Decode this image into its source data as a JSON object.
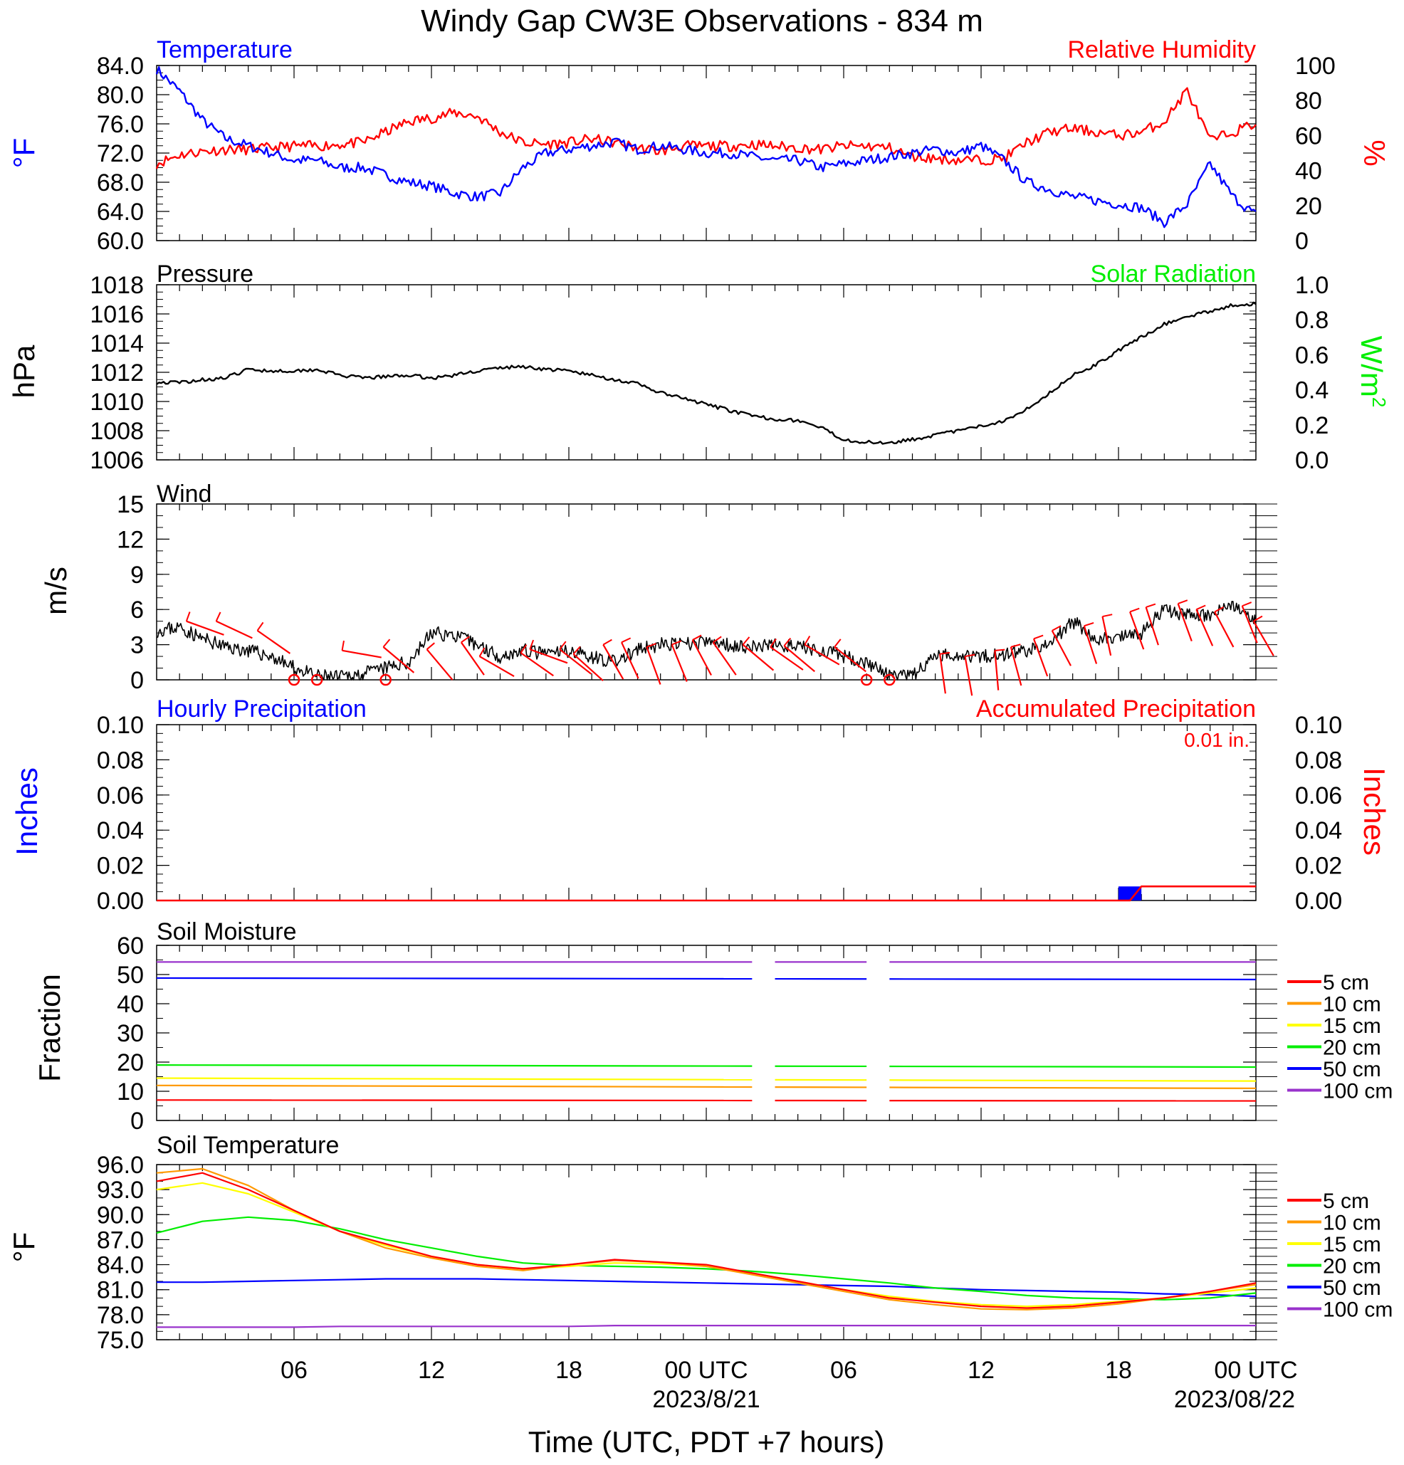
{
  "title": "Windy Gap CW3E Observations - 834 m",
  "xlabel": "Time (UTC, PDT +7 hours)",
  "x_ticks": [
    "06",
    "12",
    "18",
    "00 UTC",
    "06",
    "12",
    "18",
    "00 UTC"
  ],
  "x_dates": [
    "2023/8/21",
    "2023/08/22"
  ],
  "colors": {
    "blue": "#0000ff",
    "red": "#ff0000",
    "green": "#00ee00",
    "black": "#000000"
  },
  "legend_labels": [
    "5 cm",
    "10 cm",
    "15 cm",
    "20 cm",
    "50 cm",
    "100 cm"
  ],
  "legend_colors": [
    "#ff0000",
    "#ff9900",
    "#ffff00",
    "#00ee00",
    "#0000ff",
    "#9933cc"
  ],
  "chart_data": [
    {
      "type": "line",
      "left_title": "Temperature",
      "right_title": "Relative Humidity",
      "left_ylabel": "°F",
      "right_ylabel": "%",
      "ylim_left": [
        60,
        84
      ],
      "ylim_right": [
        0,
        100
      ],
      "left_ticks": [
        "84.0",
        "80.0",
        "76.0",
        "72.0",
        "68.0",
        "64.0",
        "60.0"
      ],
      "right_ticks": [
        "100",
        "80",
        "60",
        "40",
        "20",
        "0"
      ],
      "x_hours": [
        0,
        1,
        2,
        3,
        4,
        5,
        6,
        7,
        8,
        9,
        10,
        11,
        12,
        13,
        14,
        15,
        16,
        17,
        18,
        19,
        20,
        21,
        22,
        23,
        24,
        25,
        26,
        27,
        28,
        29,
        30,
        31,
        32,
        33,
        34,
        35,
        36,
        37,
        38,
        39,
        40,
        41,
        42,
        43,
        44,
        45,
        46,
        47,
        48
      ],
      "series": [
        {
          "name": "Temperature",
          "axis": "left",
          "color": "#0000ff",
          "values": [
            83.5,
            80.5,
            76.5,
            74.0,
            73.0,
            72.0,
            71.0,
            71.0,
            70.0,
            70.0,
            69.0,
            68.0,
            67.5,
            66.5,
            66.0,
            66.5,
            70.0,
            72.0,
            72.5,
            73.0,
            73.5,
            72.5,
            73.0,
            72.5,
            72.0,
            72.0,
            71.5,
            71.0,
            71.0,
            70.0,
            70.5,
            71.0,
            71.5,
            72.0,
            72.5,
            72.0,
            73.0,
            71.0,
            68.0,
            67.0,
            66.0,
            65.5,
            65.0,
            64.5,
            62.5,
            65.0,
            70.5,
            66.0,
            63.5
          ]
        },
        {
          "name": "Relative Humidity",
          "axis": "right",
          "color": "#ff0000",
          "values": [
            44,
            49,
            51,
            52,
            52,
            53,
            54,
            54,
            55,
            56,
            62,
            68,
            70,
            73,
            71,
            62,
            56,
            55,
            56,
            58,
            56,
            53,
            51,
            54,
            54,
            54,
            55,
            54,
            53,
            52,
            54,
            54,
            53,
            48,
            47,
            46,
            46,
            47,
            56,
            62,
            64,
            62,
            60,
            62,
            68,
            86,
            57,
            62,
            67
          ]
        }
      ]
    },
    {
      "type": "line",
      "left_title": "Pressure",
      "right_title": "Solar Radiation",
      "left_ylabel": "hPa",
      "right_ylabel": "W/m",
      "right_ylabel_sup": "2",
      "ylim_left": [
        1006,
        1018
      ],
      "ylim_right": [
        0,
        1.0
      ],
      "left_ticks": [
        "1018",
        "1016",
        "1014",
        "1012",
        "1010",
        "1008",
        "1006"
      ],
      "right_ticks": [
        "1.0",
        "0.8",
        "0.6",
        "0.4",
        "0.2",
        "0.0"
      ],
      "x_hours": [
        0,
        1,
        2,
        3,
        4,
        5,
        6,
        7,
        8,
        9,
        10,
        11,
        12,
        13,
        14,
        15,
        16,
        17,
        18,
        19,
        20,
        21,
        22,
        23,
        24,
        25,
        26,
        27,
        28,
        29,
        30,
        31,
        32,
        33,
        34,
        35,
        36,
        37,
        38,
        39,
        40,
        41,
        42,
        43,
        44,
        45,
        46,
        47,
        48
      ],
      "series": [
        {
          "name": "Pressure",
          "axis": "left",
          "color": "#000000",
          "values": [
            1011.3,
            1011.3,
            1011.5,
            1011.6,
            1012.2,
            1012.1,
            1012.1,
            1012.2,
            1011.8,
            1011.6,
            1011.7,
            1011.8,
            1011.6,
            1011.8,
            1012.1,
            1012.3,
            1012.4,
            1012.2,
            1012.1,
            1011.8,
            1011.5,
            1011.2,
            1010.6,
            1010.2,
            1009.8,
            1009.4,
            1009.0,
            1008.8,
            1008.7,
            1008.2,
            1007.4,
            1007.2,
            1007.2,
            1007.4,
            1007.7,
            1008.0,
            1008.3,
            1008.7,
            1009.5,
            1010.6,
            1011.8,
            1012.5,
            1013.5,
            1014.4,
            1015.3,
            1015.8,
            1016.2,
            1016.6,
            1016.7
          ]
        }
      ]
    },
    {
      "type": "line",
      "left_title": "Wind",
      "left_ylabel": "m/s",
      "ylim_left": [
        0,
        15
      ],
      "left_ticks": [
        "15",
        "12",
        "9",
        "6",
        "3",
        "0"
      ],
      "x_hours": [
        0,
        1,
        2,
        3,
        4,
        5,
        6,
        7,
        8,
        9,
        10,
        11,
        12,
        13,
        14,
        15,
        16,
        17,
        18,
        19,
        20,
        21,
        22,
        23,
        24,
        25,
        26,
        27,
        28,
        29,
        30,
        31,
        32,
        33,
        34,
        35,
        36,
        37,
        38,
        39,
        40,
        41,
        42,
        43,
        44,
        45,
        46,
        47,
        48
      ],
      "series": [
        {
          "name": "Wind",
          "axis": "left",
          "color": "#000000",
          "values": [
            4.2,
            4.5,
            3.5,
            2.8,
            2.5,
            2.0,
            1.0,
            0.3,
            0.2,
            0.5,
            1.0,
            1.5,
            4.0,
            3.8,
            3.0,
            2.0,
            2.5,
            2.2,
            2.5,
            2.0,
            1.5,
            2.5,
            3.0,
            3.0,
            3.2,
            3.0,
            2.8,
            3.0,
            2.8,
            2.5,
            2.0,
            1.5,
            0.3,
            0.3,
            2.0,
            2.2,
            2.0,
            2.2,
            2.5,
            3.0,
            5.0,
            3.5,
            3.5,
            4.0,
            6.0,
            5.5,
            5.5,
            6.5,
            5.0
          ]
        }
      ],
      "calm_markers_hours": [
        6,
        7,
        10,
        31,
        32
      ],
      "barbs": [
        [
          1.3,
          5,
          20
        ],
        [
          2.6,
          5,
          25
        ],
        [
          4.4,
          4.2,
          35
        ],
        [
          8.1,
          2.5,
          10
        ],
        [
          9.9,
          2.8,
          40
        ],
        [
          11.8,
          2.6,
          50
        ],
        [
          13.3,
          3.2,
          55
        ],
        [
          14.1,
          2.0,
          30
        ],
        [
          15.9,
          2.3,
          35
        ],
        [
          16.3,
          2.6,
          20
        ],
        [
          17.6,
          2.6,
          38
        ],
        [
          18.2,
          2.2,
          42
        ],
        [
          19.5,
          3.0,
          60
        ],
        [
          20.3,
          3.2,
          65
        ],
        [
          21.4,
          2.8,
          70
        ],
        [
          22.5,
          3.0,
          68
        ],
        [
          23.4,
          3.4,
          62
        ],
        [
          24.3,
          3.2,
          55
        ],
        [
          25.6,
          3.0,
          40
        ],
        [
          26.8,
          2.8,
          35
        ],
        [
          27.4,
          2.9,
          40
        ],
        [
          28.3,
          3.0,
          30
        ],
        [
          29.6,
          2.8,
          38
        ],
        [
          34.2,
          2.2,
          82
        ],
        [
          35.3,
          2.0,
          80
        ],
        [
          36.6,
          2.5,
          85
        ],
        [
          37.3,
          2.8,
          75
        ],
        [
          38.3,
          3.5,
          70
        ],
        [
          39.1,
          4.2,
          62
        ],
        [
          40.5,
          4.6,
          72
        ],
        [
          41.3,
          5.4,
          78
        ],
        [
          42.5,
          5.8,
          70
        ],
        [
          43.2,
          6.2,
          72
        ],
        [
          44.6,
          6.5,
          70
        ],
        [
          45.4,
          6.0,
          66
        ],
        [
          46.2,
          5.8,
          62
        ],
        [
          47.4,
          6.3,
          68
        ],
        [
          47.9,
          5.0,
          60
        ]
      ]
    },
    {
      "type": "bar",
      "left_title": "Hourly Precipitation",
      "right_title": "Accumulated Precipitation",
      "total_label": "0.01 in.",
      "left_ylabel": "Inches",
      "right_ylabel": "Inches",
      "ylim_left": [
        0,
        0.1
      ],
      "ylim_right": [
        0,
        0.1
      ],
      "left_ticks": [
        "0.10",
        "0.08",
        "0.06",
        "0.04",
        "0.02",
        "0.00"
      ],
      "right_ticks": [
        "0.10",
        "0.08",
        "0.06",
        "0.04",
        "0.02",
        "0.00"
      ],
      "hourly_bars": [
        {
          "hour_start": 42,
          "hour_end": 43,
          "value": 0.008
        }
      ],
      "accumulated": {
        "x_hours": [
          0,
          42.5,
          43,
          48
        ],
        "values": [
          0.0,
          0.0,
          0.008,
          0.008
        ]
      }
    },
    {
      "type": "line",
      "left_title": "Soil Moisture",
      "left_ylabel": "Fraction",
      "ylim_left": [
        0,
        60
      ],
      "left_ticks": [
        "60",
        "50",
        "40",
        "30",
        "20",
        "10",
        "0"
      ],
      "segments_hours": [
        [
          0,
          26
        ],
        [
          27,
          31
        ],
        [
          32,
          48
        ]
      ],
      "series": [
        {
          "name": "5 cm",
          "color": "#ff0000",
          "values_start": 7.0,
          "values_end": 6.7
        },
        {
          "name": "10 cm",
          "color": "#ff9900",
          "values_start": 12.0,
          "values_end": 11.0
        },
        {
          "name": "15 cm",
          "color": "#ffff00",
          "values_start": 14.5,
          "values_end": 13.5
        },
        {
          "name": "20 cm",
          "color": "#00ee00",
          "values_start": 19.0,
          "values_end": 18.3
        },
        {
          "name": "50 cm",
          "color": "#0000ff",
          "values_start": 48.8,
          "values_end": 48.3
        },
        {
          "name": "100 cm",
          "color": "#9933cc",
          "values_start": 54.3,
          "values_end": 54.3
        }
      ]
    },
    {
      "type": "line",
      "left_title": "Soil Temperature",
      "left_ylabel": "°F",
      "ylim_left": [
        75,
        96
      ],
      "left_ticks": [
        "96.0",
        "93.0",
        "90.0",
        "87.0",
        "84.0",
        "81.0",
        "78.0",
        "75.0"
      ],
      "x_hours": [
        0,
        2,
        4,
        6,
        8,
        10,
        12,
        14,
        16,
        18,
        20,
        22,
        24,
        26,
        28,
        30,
        32,
        34,
        36,
        38,
        40,
        42,
        44,
        46,
        48
      ],
      "series": [
        {
          "name": "5 cm",
          "color": "#ff0000",
          "values": [
            94.0,
            95.0,
            93.0,
            90.5,
            88.0,
            86.5,
            85.0,
            84.0,
            83.5,
            84.0,
            84.6,
            84.3,
            84.0,
            83.0,
            82.0,
            81.0,
            80.0,
            79.5,
            79.0,
            78.8,
            79.0,
            79.5,
            80.0,
            80.8,
            81.8
          ]
        },
        {
          "name": "10 cm",
          "color": "#ff9900",
          "values": [
            95.0,
            95.5,
            93.5,
            90.5,
            88.0,
            86.0,
            84.8,
            83.8,
            83.3,
            84.0,
            84.5,
            84.3,
            83.8,
            82.8,
            81.8,
            80.8,
            79.8,
            79.2,
            78.7,
            78.6,
            78.8,
            79.3,
            80.0,
            80.8,
            81.6
          ]
        },
        {
          "name": "15 cm",
          "color": "#ffff00",
          "values": [
            93.0,
            93.8,
            92.5,
            90.3,
            88.0,
            86.3,
            85.0,
            84.0,
            83.5,
            83.8,
            84.2,
            84.1,
            83.8,
            83.0,
            82.0,
            81.0,
            80.2,
            79.6,
            79.2,
            79.0,
            79.2,
            79.6,
            80.0,
            80.6,
            81.2
          ]
        },
        {
          "name": "20 cm",
          "color": "#00ee00",
          "values": [
            87.8,
            89.2,
            89.7,
            89.3,
            88.3,
            87.0,
            86.0,
            85.0,
            84.2,
            83.9,
            83.8,
            83.7,
            83.5,
            83.2,
            82.8,
            82.3,
            81.8,
            81.2,
            80.8,
            80.3,
            80.0,
            79.9,
            79.8,
            80.0,
            80.6
          ]
        },
        {
          "name": "50 cm",
          "color": "#0000ff",
          "values": [
            81.9,
            81.9,
            82.0,
            82.1,
            82.2,
            82.3,
            82.3,
            82.3,
            82.2,
            82.1,
            82.0,
            81.9,
            81.8,
            81.7,
            81.6,
            81.5,
            81.4,
            81.2,
            81.0,
            80.9,
            80.8,
            80.7,
            80.5,
            80.4,
            80.2
          ]
        },
        {
          "name": "100 cm",
          "color": "#9933cc",
          "values": [
            76.5,
            76.5,
            76.5,
            76.5,
            76.6,
            76.6,
            76.6,
            76.6,
            76.6,
            76.6,
            76.7,
            76.7,
            76.7,
            76.7,
            76.7,
            76.7,
            76.7,
            76.7,
            76.7,
            76.7,
            76.7,
            76.7,
            76.7,
            76.7,
            76.7
          ]
        }
      ]
    }
  ]
}
